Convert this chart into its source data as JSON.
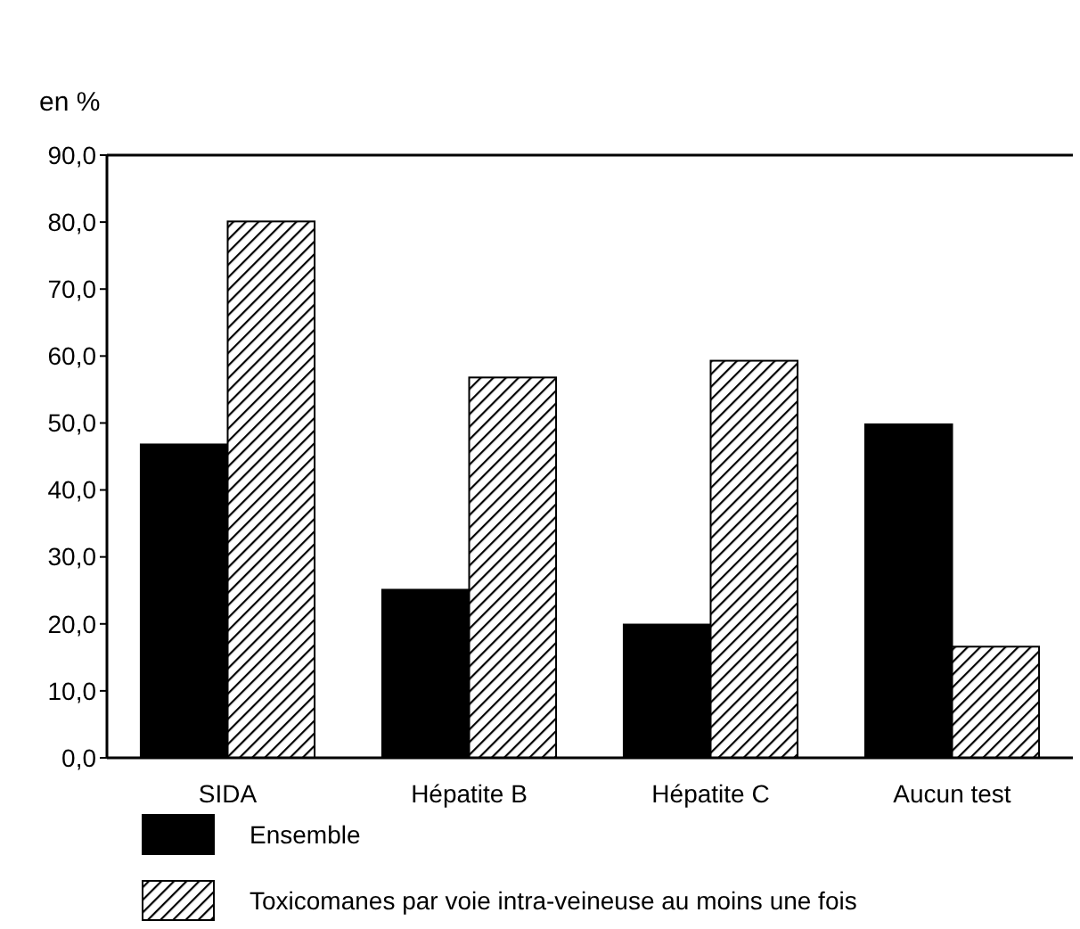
{
  "chart_data": {
    "type": "bar",
    "ylabel": "en %",
    "categories": [
      "SIDA",
      "Hépatite B",
      "Hépatite C",
      "Aucun test"
    ],
    "series": [
      {
        "name": "Ensemble",
        "color": "#000000",
        "values": [
          46.8,
          25.1,
          19.9,
          49.8
        ]
      },
      {
        "name": "Toxicomanes par voie intra-veineuse au moins une fois",
        "color": "#000000",
        "values": [
          80.1,
          56.8,
          59.3,
          16.6
        ]
      }
    ],
    "ylim": [
      0,
      90
    ],
    "yticks": [
      {
        "value": 0,
        "label": "0,0"
      },
      {
        "value": 10,
        "label": "10,0"
      },
      {
        "value": 20,
        "label": "20,0"
      },
      {
        "value": 30,
        "label": "30,0"
      },
      {
        "value": 40,
        "label": "40,0"
      },
      {
        "value": 50,
        "label": "50,0"
      },
      {
        "value": 60,
        "label": "60,0"
      },
      {
        "value": 70,
        "label": "70,0"
      },
      {
        "value": 80,
        "label": "80,0"
      },
      {
        "value": 90,
        "label": "90,0"
      }
    ],
    "grid": false,
    "legend": "bottom left"
  }
}
